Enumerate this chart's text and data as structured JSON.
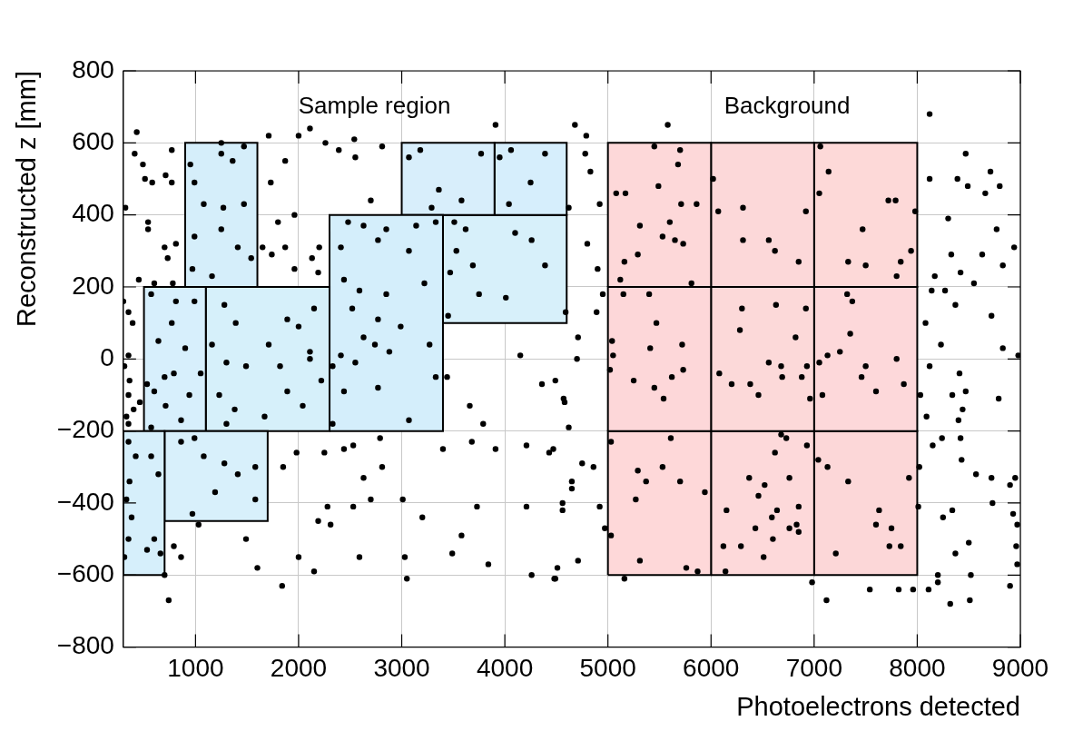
{
  "chart_data": {
    "type": "scatter",
    "xlabel": "Photoelectrons detected",
    "ylabel": "Reconstructed z [mm]",
    "xlim": [
      300,
      9000
    ],
    "xticks": [
      1000,
      2000,
      3000,
      4000,
      5000,
      6000,
      7000,
      8000,
      9000
    ],
    "ylim": [
      -800,
      800
    ],
    "yticks": [
      {
        "value": -800,
        "label": "−800"
      },
      {
        "value": -600,
        "label": "−600"
      },
      {
        "value": -400,
        "label": "−400"
      },
      {
        "value": -200,
        "label": "−200"
      },
      0,
      200,
      400,
      600,
      800
    ],
    "grid": true,
    "legend": false,
    "annotations": [
      "Sample region",
      "Background"
    ],
    "series": [
      {
        "type": "area",
        "marker": "none",
        "color": "#d6effb",
        "x": [
          300,
          700,
          700,
          300,
          300
        ],
        "values": [
          -600,
          -600,
          -200,
          -200,
          -600
        ]
      },
      {
        "type": "area",
        "marker": "none",
        "color": "#d8f0fb",
        "x": [
          700,
          1700,
          1700,
          700,
          700
        ],
        "values": [
          -450,
          -450,
          -200,
          -200,
          -450
        ]
      },
      {
        "type": "area",
        "marker": "none",
        "color": "#d5eefa",
        "x": [
          900,
          1600,
          1600,
          900,
          900
        ],
        "values": [
          200,
          200,
          600,
          600,
          200
        ]
      },
      {
        "type": "area",
        "marker": "none",
        "color": "#d7effc",
        "x": [
          500,
          1100,
          1100,
          500,
          500
        ],
        "values": [
          -200,
          -200,
          200,
          200,
          -200
        ]
      },
      {
        "type": "area",
        "marker": "none",
        "color": "#d6f0fa",
        "x": [
          1100,
          2300,
          2300,
          1100,
          1100
        ],
        "values": [
          -200,
          -200,
          200,
          200,
          -200
        ]
      },
      {
        "type": "area",
        "marker": "none",
        "color": "#d4eefb",
        "x": [
          2300,
          3400,
          3400,
          2300,
          2300
        ],
        "values": [
          -200,
          -200,
          400,
          400,
          -200
        ]
      },
      {
        "type": "area",
        "marker": "none",
        "color": "#d8eefb",
        "x": [
          3000,
          3900,
          3900,
          3000,
          3000
        ],
        "values": [
          400,
          400,
          600,
          600,
          400
        ]
      },
      {
        "type": "area",
        "marker": "none",
        "color": "#d6eefc",
        "x": [
          3900,
          4600,
          4600,
          3900,
          3900
        ],
        "values": [
          400,
          400,
          600,
          600,
          400
        ]
      },
      {
        "type": "area",
        "marker": "none",
        "color": "#d7f0fa",
        "x": [
          3400,
          4600,
          4600,
          3400,
          3400
        ],
        "values": [
          100,
          100,
          400,
          400,
          100
        ]
      },
      {
        "type": "area",
        "marker": "none",
        "color": "#fdd8d9",
        "x": [
          5000,
          6000,
          6000,
          5000,
          5000
        ],
        "values": [
          200,
          200,
          600,
          600,
          200
        ]
      },
      {
        "type": "area",
        "marker": "none",
        "color": "#fcd8d9",
        "x": [
          6000,
          7000,
          7000,
          6000,
          6000
        ],
        "values": [
          200,
          200,
          600,
          600,
          200
        ]
      },
      {
        "type": "area",
        "marker": "none",
        "color": "#fdd9d8",
        "x": [
          7000,
          8000,
          8000,
          7000,
          7000
        ],
        "values": [
          200,
          200,
          600,
          600,
          200
        ]
      },
      {
        "type": "area",
        "marker": "none",
        "color": "#fdd7d9",
        "x": [
          5000,
          6000,
          6000,
          5000,
          5000
        ],
        "values": [
          -200,
          -200,
          200,
          200,
          -200
        ]
      },
      {
        "type": "area",
        "marker": "none",
        "color": "#fcd9d9",
        "x": [
          6000,
          7000,
          7000,
          6000,
          6000
        ],
        "values": [
          -200,
          -200,
          200,
          200,
          -200
        ]
      },
      {
        "type": "area",
        "marker": "none",
        "color": "#fdd8da",
        "x": [
          7000,
          8000,
          8000,
          7000,
          7000
        ],
        "values": [
          -200,
          -200,
          200,
          200,
          -200
        ]
      },
      {
        "type": "area",
        "marker": "none",
        "color": "#fed8d9",
        "x": [
          5000,
          6000,
          6000,
          5000,
          5000
        ],
        "values": [
          -600,
          -600,
          -200,
          -200,
          -600
        ]
      },
      {
        "type": "area",
        "marker": "none",
        "color": "#fdd9da",
        "x": [
          6000,
          7000,
          7000,
          6000,
          6000
        ],
        "values": [
          -600,
          -600,
          -200,
          -200,
          -600
        ]
      },
      {
        "type": "area",
        "marker": "none",
        "color": "#fcd7d8",
        "x": [
          7000,
          8000,
          8000,
          7000,
          7000
        ],
        "values": [
          -600,
          -600,
          -200,
          -200,
          -600
        ]
      },
      {
        "color": "#000000",
        "marker": "circle",
        "x": [
          430,
          410,
          490,
          510,
          580,
          710,
          770,
          770,
          320,
          540,
          540,
          700,
          730,
          810,
          450,
          600,
          780,
          300,
          350,
          390,
          350,
          310,
          360,
          350,
          400,
          330,
          460,
          350,
          350,
          420,
          360,
          330,
          380,
          350,
          530,
          660,
          600,
          570,
          640,
          310,
          740,
          700,
          790,
          860,
          570,
          810,
          990,
          770,
          640,
          900,
          700,
          790,
          530,
          600,
          940,
          710,
          1050,
          570,
          860,
          1250,
          950,
          1250,
          1360,
          1470,
          990,
          1080,
          1270,
          1470,
          990,
          1250,
          1410,
          1540,
          970,
          1160,
          860,
          990,
          1080,
          1280,
          1410,
          1580,
          1190,
          970,
          1580,
          1280,
          1390,
          1160,
          1300,
          1490,
          1710,
          1230,
          1380,
          1670,
          1820,
          1890,
          2000,
          2150,
          2110,
          2220,
          1890,
          2040,
          1300,
          2110,
          2480,
          2630,
          2850,
          3140,
          3330,
          2410,
          2770,
          3070,
          2440,
          2590,
          2850,
          3220,
          2520,
          2770,
          2990,
          2630,
          2740,
          2410,
          2330,
          2550,
          2880,
          3270,
          3330,
          2770,
          2440,
          3070,
          2330,
          3070,
          3180,
          3360,
          3290,
          3580,
          3770,
          3950,
          4060,
          4390,
          4250,
          4040,
          3510,
          3620,
          3530,
          3470,
          3690,
          4100,
          4260,
          4390,
          3750,
          4010,
          4590,
          3450,
          3440,
          3660,
          3790,
          4150,
          4360,
          4580,
          3400,
          3680,
          3910,
          4210,
          4430,
          4650,
          3730,
          4210,
          4560,
          3490,
          3840,
          4260,
          4480,
          3200,
          3580,
          1980,
          2250,
          2440,
          2530,
          2790,
          2630,
          2810,
          1850,
          2190,
          2280,
          2310,
          2530,
          2700,
          3010,
          2000,
          2150,
          2590,
          1840,
          1600,
          1490,
          1030,
          3030,
          3050,
          1730,
          1800,
          1650,
          1870,
          1960,
          1740,
          1870,
          2130,
          2200,
          2190,
          1960,
          1710,
          2000,
          2110,
          2260,
          2390,
          2550,
          2700,
          2810,
          2540,
          3910,
          4680,
          4790,
          4780,
          4830,
          4620,
          4920,
          4800,
          4900,
          4950,
          4890,
          4710,
          4700,
          4490,
          4570,
          4620,
          4470,
          4750,
          4860,
          4650,
          4560,
          4920,
          4970,
          4710,
          4510,
          4490,
          5580,
          5450,
          5700,
          5680,
          5080,
          5170,
          5490,
          5710,
          5860,
          5310,
          5600,
          5530,
          5650,
          5730,
          5290,
          5160,
          5120,
          5810,
          6020,
          6070,
          6310,
          6560,
          6620,
          6310,
          6850,
          6920,
          7060,
          7140,
          7050,
          7720,
          7790,
          7470,
          7330,
          7500,
          7800,
          7840,
          7940,
          7980,
          5150,
          5400,
          5470,
          5040,
          5050,
          5410,
          5720,
          5020,
          5250,
          5450,
          5620,
          5730,
          5540,
          6300,
          6630,
          6920,
          6280,
          6820,
          6080,
          6200,
          6380,
          6560,
          6680,
          6690,
          6880,
          6930,
          6460,
          6960,
          7320,
          7370,
          7350,
          7130,
          7250,
          7050,
          7500,
          7460,
          7800,
          7080,
          7600,
          7870,
          5030,
          5610,
          5290,
          5370,
          5530,
          5700,
          5940,
          5270,
          5030,
          5310,
          5760,
          5870,
          6680,
          6730,
          6620,
          6930,
          6370,
          6520,
          6760,
          6460,
          6150,
          6640,
          6590,
          6850,
          6430,
          6760,
          6830,
          6850,
          6600,
          6120,
          6290,
          6510,
          6140,
          7040,
          7130,
          7330,
          7920,
          7630,
          7600,
          7750,
          7210,
          7730,
          7840,
          5160,
          6980,
          7120,
          7540,
          7820,
          7960,
          8110,
          8200,
          8320,
          8510,
          8900,
          8120,
          8470,
          8710,
          8800,
          8660,
          8390,
          8490,
          8120,
          8300,
          8770,
          8940,
          8330,
          8630,
          8830,
          8170,
          8420,
          8550,
          8140,
          8270,
          8370,
          8080,
          8720,
          8230,
          8830,
          8980,
          8120,
          8410,
          8470,
          8340,
          8790,
          8030,
          8090,
          8400,
          8440,
          8240,
          8420,
          8150,
          8430,
          8570,
          8720,
          8950,
          8730,
          8900,
          8340,
          8250,
          8930,
          8970,
          8500,
          8370,
          8960,
          8970,
          8020,
          8010,
          8520,
          8200
        ],
        "values": [
          630,
          570,
          540,
          500,
          490,
          510,
          490,
          580,
          420,
          380,
          360,
          310,
          280,
          320,
          220,
          210,
          210,
          160,
          130,
          100,
          10,
          -20,
          -60,
          -100,
          -140,
          -160,
          -120,
          -180,
          -230,
          -270,
          -340,
          -390,
          -440,
          -500,
          -530,
          -540,
          -500,
          -270,
          -320,
          -550,
          -670,
          -600,
          -520,
          -550,
          180,
          160,
          160,
          100,
          50,
          30,
          -50,
          -40,
          -70,
          -90,
          -100,
          -130,
          -40,
          -190,
          -170,
          600,
          540,
          570,
          550,
          590,
          490,
          430,
          420,
          430,
          340,
          360,
          310,
          280,
          250,
          230,
          -230,
          -220,
          -270,
          -290,
          -320,
          -300,
          -370,
          -430,
          -390,
          150,
          100,
          40,
          -10,
          -20,
          40,
          -100,
          -140,
          -160,
          -20,
          110,
          90,
          140,
          20,
          -60,
          -90,
          -130,
          -180,
          0,
          380,
          370,
          360,
          370,
          380,
          310,
          330,
          300,
          220,
          190,
          180,
          210,
          140,
          110,
          90,
          60,
          40,
          10,
          -20,
          -10,
          20,
          40,
          -50,
          -80,
          -90,
          -170,
          -180,
          560,
          580,
          470,
          420,
          440,
          570,
          560,
          580,
          570,
          490,
          430,
          380,
          360,
          300,
          240,
          260,
          350,
          330,
          260,
          180,
          170,
          130,
          120,
          -50,
          -130,
          -180,
          10,
          -70,
          -120,
          -250,
          -230,
          -250,
          -240,
          -260,
          -340,
          -410,
          -410,
          -400,
          -540,
          -570,
          -600,
          -610,
          -440,
          -490,
          -260,
          -260,
          -250,
          -240,
          -220,
          -330,
          -300,
          -300,
          -450,
          -410,
          -460,
          -410,
          -390,
          -390,
          -550,
          -590,
          -550,
          -630,
          -580,
          -500,
          -460,
          -550,
          -610,
          490,
          380,
          310,
          550,
          400,
          290,
          310,
          280,
          310,
          240,
          250,
          620,
          620,
          640,
          600,
          580,
          560,
          440,
          590,
          610,
          650,
          650,
          620,
          570,
          520,
          420,
          430,
          320,
          250,
          180,
          130,
          60,
          0,
          -60,
          -110,
          -190,
          -250,
          -290,
          -300,
          -360,
          -420,
          -410,
          -470,
          -560,
          -580,
          -610,
          650,
          590,
          580,
          540,
          460,
          460,
          480,
          430,
          430,
          370,
          380,
          340,
          330,
          320,
          290,
          270,
          220,
          210,
          500,
          410,
          420,
          330,
          300,
          330,
          270,
          410,
          590,
          520,
          460,
          440,
          440,
          360,
          270,
          260,
          230,
          270,
          300,
          410,
          180,
          180,
          100,
          50,
          10,
          30,
          40,
          -30,
          -60,
          -80,
          -50,
          -30,
          -110,
          140,
          150,
          140,
          80,
          60,
          -40,
          -70,
          -70,
          -10,
          -20,
          -50,
          -50,
          -20,
          -100,
          -110,
          180,
          160,
          70,
          10,
          20,
          -10,
          -20,
          -50,
          0,
          -100,
          -90,
          -70,
          -230,
          -220,
          -310,
          -340,
          -300,
          -340,
          -370,
          -390,
          -490,
          -560,
          -580,
          -590,
          -210,
          -220,
          -260,
          -240,
          -330,
          -350,
          -330,
          -380,
          -420,
          -420,
          -440,
          -410,
          -470,
          -470,
          -460,
          -480,
          -500,
          -520,
          -520,
          -550,
          -590,
          -280,
          -300,
          -340,
          -330,
          -420,
          -460,
          -470,
          -540,
          -520,
          -520,
          -610,
          -620,
          -670,
          -640,
          -640,
          -640,
          -640,
          -620,
          -680,
          -670,
          -630,
          680,
          570,
          520,
          480,
          460,
          500,
          480,
          500,
          390,
          360,
          310,
          290,
          290,
          260,
          230,
          240,
          210,
          190,
          190,
          150,
          100,
          120,
          40,
          30,
          10,
          -20,
          -40,
          -90,
          -100,
          -110,
          -100,
          -160,
          -170,
          -140,
          -220,
          -220,
          -240,
          -280,
          -320,
          -330,
          -330,
          -400,
          -350,
          -420,
          -440,
          -430,
          -460,
          -510,
          -540,
          -520,
          -570,
          -300,
          -410,
          -600,
          -600
        ]
      }
    ]
  }
}
